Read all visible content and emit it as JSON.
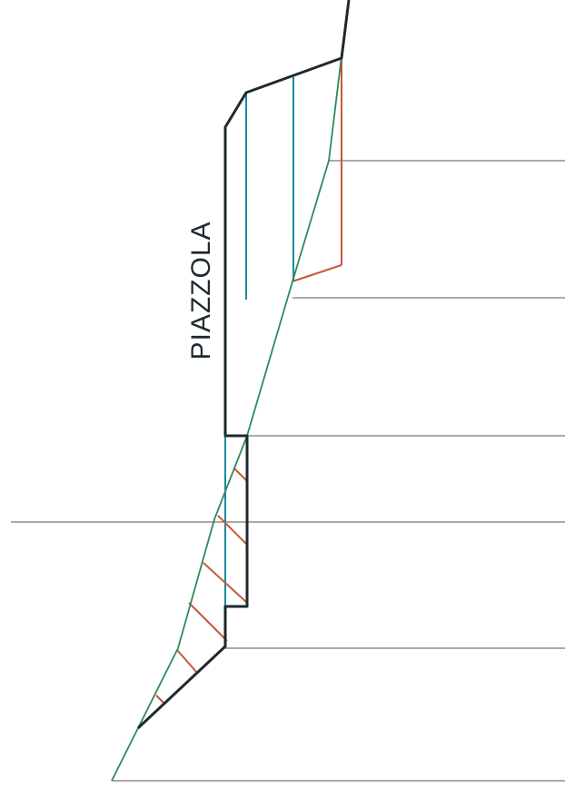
{
  "drawing": {
    "label": "PIAZZOLA",
    "colors": {
      "reference_line": "#555555",
      "project_profile": "#1e2a2e",
      "terrain_profile": "#2e8b57",
      "fill_hatch": "#c8563c",
      "cut_hatch": "#1a8aa0",
      "background": "#ffffff"
    }
  }
}
